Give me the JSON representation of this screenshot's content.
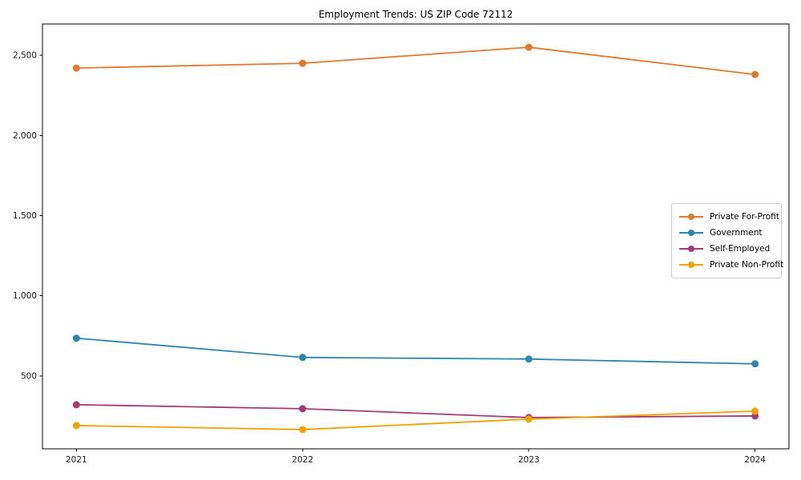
{
  "figure": {
    "background": "#ffffff",
    "axis_color": "#000000",
    "tick_label_color": "#1a1a1a",
    "legend_border_color": "#cccccc"
  },
  "chart_data": {
    "type": "line",
    "title": "Employment Trends: US ZIP Code 72112",
    "xlabel": "",
    "ylabel": "",
    "x": [
      2021,
      2022,
      2023,
      2024
    ],
    "x_tick_labels": [
      "2021",
      "2022",
      "2023",
      "2024"
    ],
    "series": [
      {
        "name": "Private For-Profit",
        "color": "#E0782F",
        "values": [
          2420,
          2450,
          2550,
          2380
        ]
      },
      {
        "name": "Government",
        "color": "#2E86AB",
        "values": [
          735,
          615,
          605,
          575
        ]
      },
      {
        "name": "Self-Employed",
        "color": "#A23B72",
        "values": [
          320,
          295,
          240,
          250
        ]
      },
      {
        "name": "Private Non-Profit",
        "color": "#F0A202",
        "values": [
          190,
          165,
          230,
          280
        ]
      }
    ],
    "y_ticks": [
      500,
      1000,
      1500,
      2000,
      2500
    ],
    "y_tick_labels": [
      "500",
      "1,000",
      "1,500",
      "2,000",
      "2,500"
    ],
    "ylim": [
      45,
      2695
    ],
    "xlim": [
      2020.85,
      2024.15
    ],
    "grid": false,
    "legend_position": "center right",
    "marker": "circle"
  }
}
